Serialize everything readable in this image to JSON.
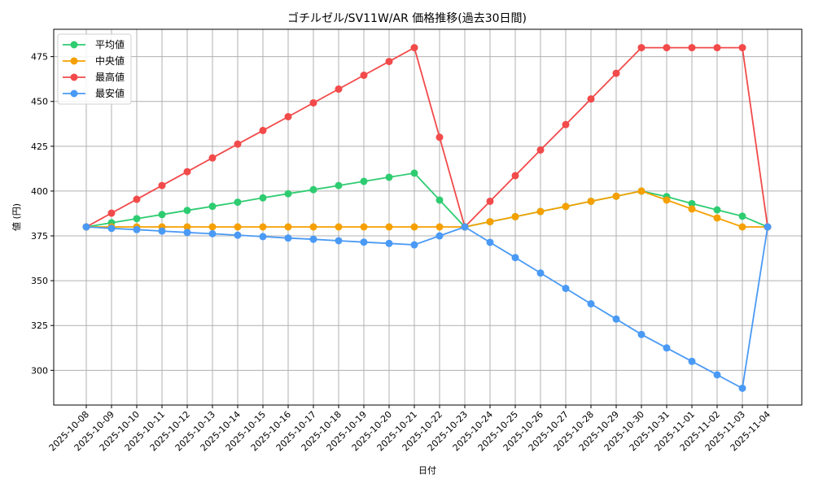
{
  "chart_data": {
    "type": "line",
    "title": "ゴチルゼル/SV11W/AR 価格推移(過去30日間)",
    "xlabel": "日付",
    "ylabel": "値 (円)",
    "ylim": [
      280,
      490
    ],
    "yticks": [
      300,
      325,
      350,
      375,
      400,
      425,
      450,
      475
    ],
    "grid": true,
    "legend_position": "upper left",
    "categories": [
      "2025-10-08",
      "2025-10-09",
      "2025-10-10",
      "2025-10-11",
      "2025-10-12",
      "2025-10-13",
      "2025-10-14",
      "2025-10-15",
      "2025-10-16",
      "2025-10-17",
      "2025-10-18",
      "2025-10-19",
      "2025-10-20",
      "2025-10-21",
      "2025-10-22",
      "2025-10-23",
      "2025-10-24",
      "2025-10-25",
      "2025-10-26",
      "2025-10-27",
      "2025-10-28",
      "2025-10-29",
      "2025-10-30",
      "2025-10-31",
      "2025-11-01",
      "2025-11-02",
      "2025-11-03",
      "2025-11-04"
    ],
    "series": [
      {
        "name": "平均値",
        "color": "#2ecc71",
        "values": [
          380,
          382.3,
          384.6,
          386.9,
          389.2,
          391.5,
          393.8,
          396.2,
          398.5,
          400.8,
          403.1,
          405.4,
          407.7,
          410,
          395,
          380,
          382.9,
          385.7,
          388.6,
          391.4,
          394.3,
          397.1,
          400,
          396.9,
          393,
          389.5,
          386,
          380
        ]
      },
      {
        "name": "中央値",
        "color": "#f5a000",
        "values": [
          380,
          380,
          380,
          380,
          380,
          380,
          380,
          380,
          380,
          380,
          380,
          380,
          380,
          380,
          380,
          380,
          382.9,
          385.7,
          388.6,
          391.4,
          394.3,
          397.1,
          400,
          395,
          390,
          385,
          380,
          380
        ]
      },
      {
        "name": "最高値",
        "color": "#f24a4a",
        "values": [
          380,
          387.7,
          395.4,
          403.1,
          410.8,
          418.5,
          426.2,
          433.8,
          441.5,
          449.2,
          456.9,
          464.6,
          472.3,
          480,
          430,
          380,
          394.3,
          408.6,
          422.9,
          437.1,
          451.4,
          465.7,
          480,
          480,
          480,
          480,
          480,
          380
        ]
      },
      {
        "name": "最安値",
        "color": "#4a9af5",
        "values": [
          380,
          379.2,
          378.5,
          377.7,
          376.9,
          376.2,
          375.4,
          374.6,
          373.8,
          373.1,
          372.3,
          371.5,
          370.8,
          370,
          375,
          380,
          371.4,
          362.9,
          354.3,
          345.7,
          337.1,
          328.6,
          320,
          312.5,
          305,
          297.5,
          290,
          380
        ]
      }
    ]
  }
}
